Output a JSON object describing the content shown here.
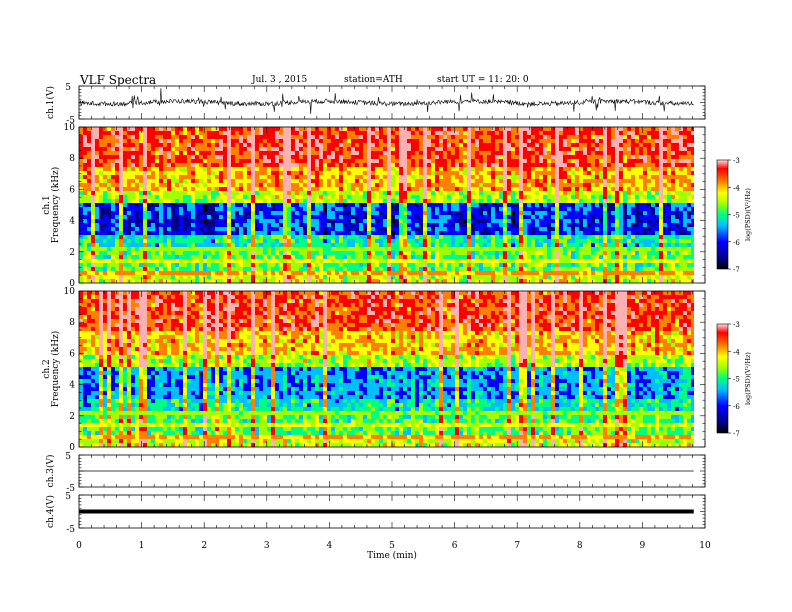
{
  "header": {
    "title": "VLF  Spectra",
    "date": "Jul.  3  , 2015",
    "station": "station=ATH",
    "start": "start  UT  =    11: 20: 0"
  },
  "chart_data": [
    {
      "type": "line",
      "name": "ch1-waveform",
      "ylabel": "ch.1(V)",
      "ylim": [
        -5,
        5
      ],
      "yticks": [
        "5",
        "-5"
      ],
      "description_values": {
        "baseline": 0,
        "typical_amplitude": 1
      }
    },
    {
      "type": "heatmap",
      "name": "ch1-spectrogram",
      "ylabel": [
        "ch.1",
        "Frequency  (kHz)"
      ],
      "ylim": [
        0,
        10
      ],
      "yticks": [
        "0",
        "2",
        "4",
        "6",
        "8",
        "10"
      ],
      "colorbar": {
        "label": "log(PSD)(V²/Hz)",
        "range": [
          -7,
          -3
        ],
        "ticks": [
          "-3",
          "-4",
          "-5",
          "-6",
          "-7"
        ]
      }
    },
    {
      "type": "heatmap",
      "name": "ch2-spectrogram",
      "ylabel": [
        "ch.2",
        "Frequency  (kHz)"
      ],
      "ylim": [
        0,
        10
      ],
      "yticks": [
        "0",
        "2",
        "4",
        "6",
        "8",
        "10"
      ],
      "colorbar": {
        "label": "log(PSD)(V²/Hz)",
        "range": [
          -7,
          -3
        ],
        "ticks": [
          "-3",
          "-4",
          "-5",
          "-6",
          "-7"
        ]
      }
    },
    {
      "type": "line",
      "name": "ch3-waveform",
      "ylabel": "ch.3(V)",
      "ylim": [
        -5,
        5
      ],
      "yticks": [
        "5",
        "-5"
      ],
      "description_values": {
        "baseline": 0
      }
    },
    {
      "type": "line",
      "name": "ch4-waveform",
      "ylabel": "ch.4(V)",
      "ylim": [
        -5,
        5
      ],
      "yticks": [
        "5",
        "-5"
      ],
      "description_values": {
        "baseline": 0
      }
    }
  ],
  "xaxis": {
    "label": "Time  (min)",
    "xlim": [
      0,
      10
    ],
    "ticks": [
      "0",
      "1",
      "2",
      "3",
      "4",
      "5",
      "6",
      "7",
      "8",
      "9",
      "10"
    ],
    "data_end": 9.82
  },
  "colors": {
    "scale": [
      "#000000",
      "#00008b",
      "#0000ff",
      "#00bfff",
      "#00ff80",
      "#a0ff00",
      "#ffff00",
      "#ff8000",
      "#ff0000",
      "#ffb0b0"
    ],
    "line": "#000000"
  }
}
